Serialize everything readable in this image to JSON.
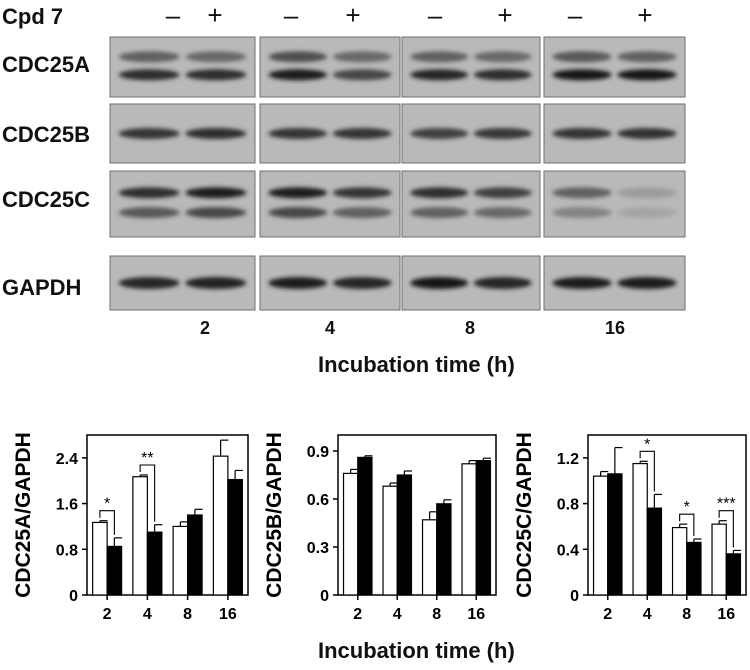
{
  "blot": {
    "treatment_label": "Cpd 7",
    "signs": [
      "–",
      "+",
      "–",
      "+",
      "–",
      "+",
      "–",
      "+"
    ],
    "rows": [
      "CDC25A",
      "CDC25B",
      "CDC25C",
      "GAPDH"
    ],
    "lanes": [
      "2",
      "4",
      "8",
      "16"
    ],
    "xlabel": "Incubation time (h)"
  },
  "chart_data": [
    {
      "type": "bar",
      "categories": [
        "2",
        "4",
        "8",
        "16"
      ],
      "series": [
        {
          "fill": "#ffffff",
          "values": [
            1.27,
            2.07,
            1.2,
            2.43
          ],
          "errors": [
            0.03,
            0.03,
            0.08,
            0.28
          ]
        },
        {
          "fill": "#000000",
          "values": [
            0.85,
            1.1,
            1.4,
            2.02
          ],
          "errors": [
            0.15,
            0.13,
            0.1,
            0.16
          ]
        }
      ],
      "ylabel": "CDC25A/GAPDH",
      "ylim": [
        0,
        2.8
      ],
      "yticks": [
        "0",
        "0.8",
        "1.6",
        "2.4"
      ],
      "significance": [
        {
          "category": "2",
          "label": "*"
        },
        {
          "category": "4",
          "label": "**"
        }
      ]
    },
    {
      "type": "bar",
      "categories": [
        "2",
        "4",
        "8",
        "16"
      ],
      "series": [
        {
          "fill": "#ffffff",
          "values": [
            0.76,
            0.68,
            0.47,
            0.82
          ],
          "errors": [
            0.025,
            0.02,
            0.05,
            0.02
          ]
        },
        {
          "fill": "#000000",
          "values": [
            0.86,
            0.75,
            0.57,
            0.84
          ],
          "errors": [
            0.01,
            0.025,
            0.025,
            0.015
          ]
        }
      ],
      "ylabel": "CDC25B/GAPDH",
      "ylim": [
        0,
        1.0
      ],
      "yticks": [
        "0",
        "0.3",
        "0.6",
        "0.9"
      ],
      "significance": []
    },
    {
      "type": "bar",
      "categories": [
        "2",
        "4",
        "8",
        "16"
      ],
      "series": [
        {
          "fill": "#ffffff",
          "values": [
            1.04,
            1.15,
            0.59,
            0.62
          ],
          "errors": [
            0.04,
            0.02,
            0.03,
            0.03
          ]
        },
        {
          "fill": "#000000",
          "values": [
            1.06,
            0.76,
            0.46,
            0.36
          ],
          "errors": [
            0.23,
            0.12,
            0.03,
            0.03
          ]
        }
      ],
      "ylabel": "CDC25C/GAPDH",
      "ylim": [
        0,
        1.4
      ],
      "yticks": [
        "0",
        "0.4",
        "0.8",
        "1.2"
      ],
      "significance": [
        {
          "category": "4",
          "label": "*"
        },
        {
          "category": "8",
          "label": "*"
        },
        {
          "category": "16",
          "label": "***"
        }
      ]
    }
  ],
  "charts_xlabel": "Incubation time (h)"
}
